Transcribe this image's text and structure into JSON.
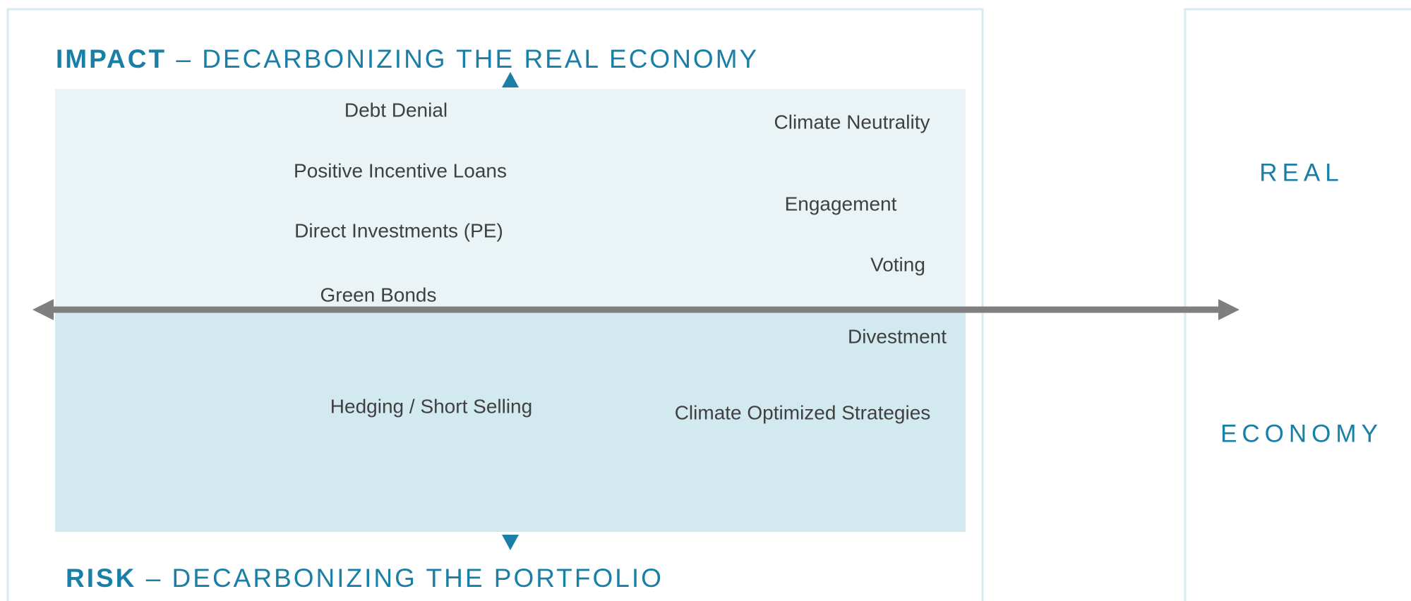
{
  "diagram": {
    "top_title": {
      "bold": "IMPACT",
      "rest": "– DECARBONIZING THE REAL ECONOMY"
    },
    "bottom_title": {
      "bold": "RISK",
      "rest": "– DECARBONIZING THE PORTFOLIO"
    },
    "labels": [
      "Debt Denial",
      "Positive Incentive Loans",
      "Direct Investments (PE)",
      "Green Bonds",
      "Climate Neutrality",
      "Engagement",
      "Voting",
      "Divestment",
      "Hedging / Short Selling",
      "Climate Optimized Strategies"
    ],
    "side_panel": [
      "REAL",
      "ECONOMY"
    ]
  }
}
